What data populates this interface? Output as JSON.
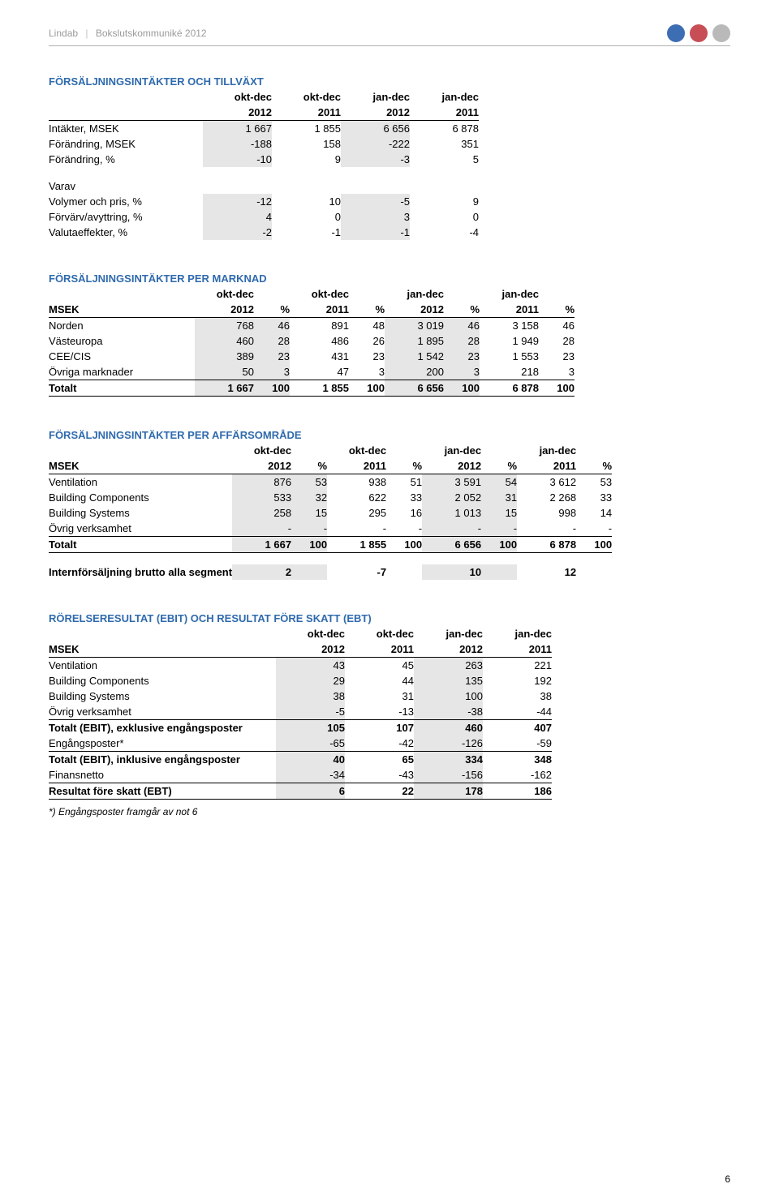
{
  "meta": {
    "brand": "Lindab",
    "doc_title": "Bokslutskommuniké 2012",
    "page_number": "6",
    "colors": {
      "accent_blue": "#2f6aad",
      "dot_blue": "#3d6db3",
      "dot_red": "#c84e56",
      "dot_grey": "#b9b9b9",
      "grey_text": "#9a9a9a",
      "shade": "#e6e6e6"
    }
  },
  "tbl1": {
    "title": "FÖRSÄLJNINGSINTÄKTER OCH TILLVÄXT",
    "periods": [
      "okt-dec",
      "okt-dec",
      "jan-dec",
      "jan-dec"
    ],
    "years": [
      "2012",
      "2011",
      "2012",
      "2011"
    ],
    "rows": [
      {
        "label": "Intäkter, MSEK",
        "v": [
          "1 667",
          "1 855",
          "6 656",
          "6 878"
        ],
        "shade": true
      },
      {
        "label": "Förändring, MSEK",
        "v": [
          "-188",
          "158",
          "-222",
          "351"
        ],
        "shade": true
      },
      {
        "label": "Förändring, %",
        "v": [
          "-10",
          "9",
          "-3",
          "5"
        ],
        "shade": true
      }
    ],
    "varav_label": "Varav",
    "varav_rows": [
      {
        "label": "Volymer och pris, %",
        "v": [
          "-12",
          "10",
          "-5",
          "9"
        ]
      },
      {
        "label": "Förvärv/avyttring, %",
        "v": [
          "4",
          "0",
          "3",
          "0"
        ]
      },
      {
        "label": "Valutaeffekter, %",
        "v": [
          "-2",
          "-1",
          "-1",
          "-4"
        ]
      }
    ]
  },
  "tbl2": {
    "title": "FÖRSÄLJNINGSINTÄKTER PER MARKNAD",
    "msek": "MSEK",
    "periods": [
      "okt-dec",
      "okt-dec",
      "jan-dec",
      "jan-dec"
    ],
    "years": [
      "2012",
      "%",
      "2011",
      "%",
      "2012",
      "%",
      "2011",
      "%"
    ],
    "rows": [
      {
        "label": "Norden",
        "v": [
          "768",
          "46",
          "891",
          "48",
          "3 019",
          "46",
          "3 158",
          "46"
        ]
      },
      {
        "label": "Västeuropa",
        "v": [
          "460",
          "28",
          "486",
          "26",
          "1 895",
          "28",
          "1 949",
          "28"
        ]
      },
      {
        "label": "CEE/CIS",
        "v": [
          "389",
          "23",
          "431",
          "23",
          "1 542",
          "23",
          "1 553",
          "23"
        ]
      },
      {
        "label": "Övriga marknader",
        "v": [
          "50",
          "3",
          "47",
          "3",
          "200",
          "3",
          "218",
          "3"
        ]
      }
    ],
    "total": {
      "label": "Totalt",
      "v": [
        "1 667",
        "100",
        "1 855",
        "100",
        "6 656",
        "100",
        "6 878",
        "100"
      ]
    }
  },
  "tbl3": {
    "title": "FÖRSÄLJNINGSINTÄKTER PER AFFÄRSOMRÅDE",
    "msek": "MSEK",
    "periods": [
      "okt-dec",
      "okt-dec",
      "jan-dec",
      "jan-dec"
    ],
    "years": [
      "2012",
      "%",
      "2011",
      "%",
      "2012",
      "%",
      "2011",
      "%"
    ],
    "rows": [
      {
        "label": "Ventilation",
        "v": [
          "876",
          "53",
          "938",
          "51",
          "3 591",
          "54",
          "3 612",
          "53"
        ]
      },
      {
        "label": "Building Components",
        "v": [
          "533",
          "32",
          "622",
          "33",
          "2 052",
          "31",
          "2 268",
          "33"
        ]
      },
      {
        "label": "Building Systems",
        "v": [
          "258",
          "15",
          "295",
          "16",
          "1 013",
          "15",
          "998",
          "14"
        ]
      },
      {
        "label": "Övrig verksamhet",
        "v": [
          "-",
          "-",
          "-",
          "-",
          "-",
          "-",
          "-",
          "-"
        ]
      }
    ],
    "total": {
      "label": "Totalt",
      "v": [
        "1 667",
        "100",
        "1 855",
        "100",
        "6 656",
        "100",
        "6 878",
        "100"
      ]
    },
    "intern": {
      "label": "Internförsäljning brutto alla segment",
      "v": [
        "2",
        "",
        "-7",
        "",
        "10",
        "",
        "12",
        ""
      ]
    }
  },
  "tbl4": {
    "title": "RÖRELSERESULTAT (EBIT) OCH RESULTAT FÖRE SKATT (EBT)",
    "msek": "MSEK",
    "periods": [
      "okt-dec",
      "okt-dec",
      "jan-dec",
      "jan-dec"
    ],
    "years": [
      "2012",
      "2011",
      "2012",
      "2011"
    ],
    "rows_a": [
      {
        "label": "Ventilation",
        "v": [
          "43",
          "45",
          "263",
          "221"
        ]
      },
      {
        "label": "Building Components",
        "v": [
          "29",
          "44",
          "135",
          "192"
        ]
      },
      {
        "label": "Building Systems",
        "v": [
          "38",
          "31",
          "100",
          "38"
        ]
      },
      {
        "label": "Övrig verksamhet",
        "v": [
          "-5",
          "-13",
          "-38",
          "-44"
        ]
      }
    ],
    "subtotal1": {
      "label": "Totalt (EBIT), exklusive engångsposter",
      "v": [
        "105",
        "107",
        "460",
        "407"
      ]
    },
    "rows_b": [
      {
        "label": "Engångsposter*",
        "v": [
          "-65",
          "-42",
          "-126",
          "-59"
        ]
      }
    ],
    "subtotal2": {
      "label": "Totalt (EBIT), inklusive engångsposter",
      "v": [
        "40",
        "65",
        "334",
        "348"
      ]
    },
    "rows_c": [
      {
        "label": "Finansnetto",
        "v": [
          "-34",
          "-43",
          "-156",
          "-162"
        ]
      }
    ],
    "final": {
      "label": "Resultat före skatt (EBT)",
      "v": [
        "6",
        "22",
        "178",
        "186"
      ]
    },
    "footnote": "*) Engångsposter framgår av not 6"
  }
}
